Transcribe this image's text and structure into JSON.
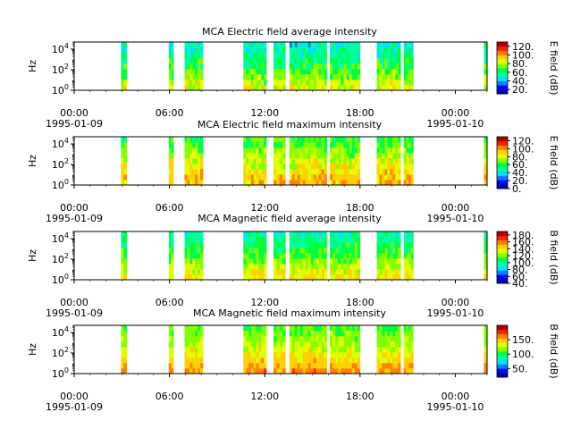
{
  "figure": {
    "x_range": [
      "1995-01-09 00:00",
      "1995-01-10 00:00"
    ],
    "x_ticks": [
      {
        "h": 0,
        "time": "00:00",
        "date": "1995-01-09"
      },
      {
        "h": 6,
        "time": "06:00",
        "date": ""
      },
      {
        "h": 12,
        "time": "12:00",
        "date": ""
      },
      {
        "h": 18,
        "time": "18:00",
        "date": ""
      },
      {
        "h": 24,
        "time": "00:00",
        "date": "1995-01-10"
      }
    ],
    "y_ticks": [
      {
        "exp": 0,
        "base": "10",
        "sup": "0"
      },
      {
        "exp": 2,
        "base": "10",
        "sup": "2"
      },
      {
        "exp": 4,
        "base": "10",
        "sup": "4"
      }
    ],
    "data_intervals_hours": [
      [
        2.95,
        3.3
      ],
      [
        5.95,
        6.25
      ],
      [
        6.95,
        8.1
      ],
      [
        10.65,
        12.1
      ],
      [
        12.55,
        13.3
      ],
      [
        13.55,
        15.9
      ],
      [
        16.1,
        18.0
      ],
      [
        19.05,
        20.55
      ],
      [
        20.75,
        21.35
      ],
      [
        25.8,
        25.95
      ]
    ],
    "colorscale": [
      "#0000b0",
      "#0000ff",
      "#0080ff",
      "#00e0ff",
      "#00ffa0",
      "#00ff40",
      "#80ff00",
      "#e0ff00",
      "#ffd000",
      "#ff8000",
      "#ff2000",
      "#b00000"
    ]
  },
  "chart_data": [
    {
      "type": "heatmap",
      "title": "MCA  Electric field average intensity",
      "ylabel": "Hz",
      "y_scale": "log",
      "ylim": [
        1,
        50000
      ],
      "colorbar": {
        "label": "E field (dB)",
        "range": [
          10,
          130
        ],
        "ticks": [
          "20.",
          "40.",
          "60.",
          "80.",
          "100.",
          "120."
        ],
        "tick_values": [
          20,
          40,
          60,
          80,
          100,
          120
        ]
      },
      "x_unit": "hours since 1995-01-09 00:00",
      "intensity_profile_db": {
        "low_freq": 85,
        "mid_freq": 65,
        "high_freq": 50
      }
    },
    {
      "type": "heatmap",
      "title": "MCA  Electric field maximum intensity",
      "ylabel": "Hz",
      "y_scale": "log",
      "ylim": [
        1,
        50000
      ],
      "colorbar": {
        "label": "E field (dB)",
        "range": [
          0,
          130
        ],
        "ticks": [
          "0.",
          "20.",
          "40.",
          "60.",
          "80.",
          "100.",
          "120."
        ],
        "tick_values": [
          0,
          20,
          40,
          60,
          80,
          100,
          120
        ]
      },
      "x_unit": "hours since 1995-01-09 00:00",
      "intensity_profile_db": {
        "low_freq": 95,
        "mid_freq": 80,
        "high_freq": 60
      }
    },
    {
      "type": "heatmap",
      "title": "MCA  Magnetic field average intensity",
      "ylabel": "Hz",
      "y_scale": "log",
      "ylim": [
        1,
        50000
      ],
      "colorbar": {
        "label": "B field (dB)",
        "range": [
          40,
          190
        ],
        "ticks": [
          "40.",
          "60.",
          "80.",
          "100.",
          "120.",
          "140.",
          "160.",
          "180."
        ],
        "tick_values": [
          40,
          60,
          80,
          100,
          120,
          140,
          160,
          180
        ]
      },
      "x_unit": "hours since 1995-01-09 00:00",
      "intensity_profile_db": {
        "low_freq": 140,
        "mid_freq": 115,
        "high_freq": 95
      }
    },
    {
      "type": "heatmap",
      "title": "MCA  Magnetic field maximum intensity",
      "ylabel": "Hz",
      "y_scale": "log",
      "ylim": [
        1,
        50000
      ],
      "colorbar": {
        "label": "B field (dB)",
        "range": [
          20,
          200
        ],
        "ticks": [
          "50.",
          "100.",
          "150."
        ],
        "tick_values": [
          50,
          100,
          150
        ]
      },
      "x_unit": "hours since 1995-01-09 00:00",
      "intensity_profile_db": {
        "low_freq": 160,
        "mid_freq": 130,
        "high_freq": 110
      }
    }
  ]
}
